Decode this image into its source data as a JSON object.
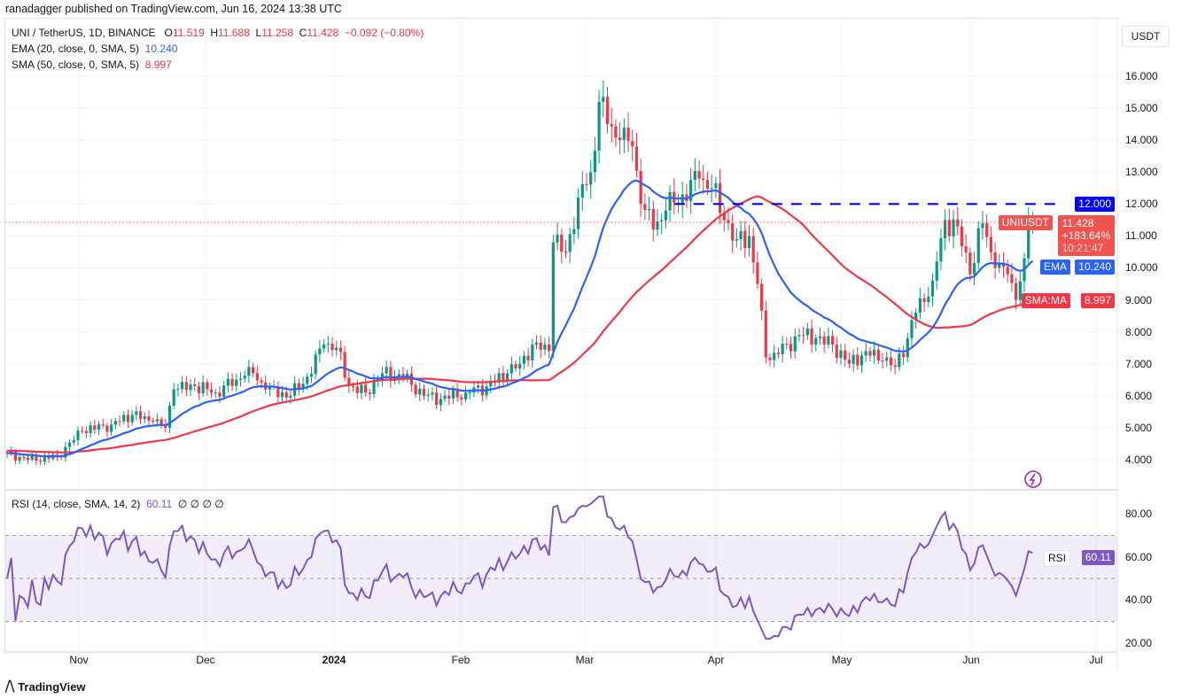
{
  "header": {
    "published": "ranadagger published on TradingView.com, Jun 16, 2024 13:38 UTC"
  },
  "legend": {
    "symbol": "UNI / TetherUS, 1D, BINANCE",
    "o_label": "O",
    "o": "11.519",
    "h_label": "H",
    "h": "11.688",
    "l_label": "L",
    "l": "11.258",
    "c_label": "C",
    "c": "11.428",
    "change": "−0.092 (−0.80%)",
    "ema": "EMA (20, close, 0, SMA, 5)",
    "ema_val": "10.240",
    "sma": "SMA (50, close, 0, SMA, 5)",
    "sma_val": "8.997",
    "rsi": "RSI (14, close, SMA, 14, 2)",
    "rsi_val": "60.11",
    "rsi_extra": "∅ ∅ ∅ ∅"
  },
  "axis": {
    "currency": "USDT",
    "price_ticks": [
      "16.000",
      "15.000",
      "14.000",
      "13.000",
      "12.000",
      "11.000",
      "10.000",
      "9.000",
      "8.000",
      "7.000",
      "6.000",
      "5.000",
      "4.000"
    ],
    "rsi_ticks": [
      "80.00",
      "60.00",
      "40.00",
      "20.00"
    ],
    "time_ticks": [
      "Nov",
      "Dec",
      "2024",
      "Feb",
      "Mar",
      "Apr",
      "May",
      "Jun",
      "Jul"
    ]
  },
  "tags": {
    "resistance": "12.000",
    "symbol": "UNIUSDT",
    "price": "11.428",
    "pct": "+183.64%",
    "countdown": "10:21:47",
    "ema_name": "EMA",
    "ema": "10.240",
    "sma_name": "SMA:MA",
    "sma": "8.997",
    "rsi_name": "RSI",
    "rsi": "60.11"
  },
  "colors": {
    "up": "#089981",
    "down": "#f23645",
    "ema": "#2962ff",
    "sma": "#f23645",
    "rsi": "#7e57c2",
    "resistance": "#0000ff"
  },
  "footer": {
    "brand": "TradingView"
  },
  "chart_data": {
    "type": "candlestick",
    "title": "UNI / TetherUS, 1D, BINANCE",
    "x_start": "2023-10-14",
    "x_end": "2024-06-16",
    "close_keypoints": [
      [
        0,
        4.2
      ],
      [
        5,
        4.0
      ],
      [
        12,
        4.1
      ],
      [
        18,
        4.9
      ],
      [
        25,
        5.1
      ],
      [
        30,
        5.4
      ],
      [
        35,
        5.2
      ],
      [
        38,
        5.0
      ],
      [
        40,
        6.2
      ],
      [
        45,
        6.3
      ],
      [
        50,
        6.1
      ],
      [
        55,
        6.5
      ],
      [
        58,
        6.9
      ],
      [
        62,
        6.2
      ],
      [
        68,
        6.0
      ],
      [
        72,
        6.6
      ],
      [
        76,
        7.6
      ],
      [
        79,
        7.5
      ],
      [
        82,
        6.3
      ],
      [
        86,
        6.1
      ],
      [
        90,
        6.7
      ],
      [
        95,
        6.6
      ],
      [
        100,
        6.0
      ],
      [
        104,
        5.9
      ],
      [
        110,
        6.1
      ],
      [
        115,
        6.3
      ],
      [
        120,
        6.7
      ],
      [
        123,
        7.0
      ],
      [
        126,
        7.6
      ],
      [
        130,
        7.4
      ],
      [
        131,
        10.8
      ],
      [
        134,
        10.5
      ],
      [
        137,
        12.2
      ],
      [
        140,
        13.0
      ],
      [
        142,
        15.2
      ],
      [
        144,
        14.5
      ],
      [
        147,
        14.0
      ],
      [
        150,
        13.8
      ],
      [
        152,
        12.0
      ],
      [
        155,
        11.2
      ],
      [
        158,
        11.8
      ],
      [
        162,
        12.3
      ],
      [
        166,
        12.8
      ],
      [
        169,
        12.5
      ],
      [
        172,
        11.5
      ],
      [
        175,
        10.9
      ],
      [
        178,
        11.0
      ],
      [
        180,
        9.5
      ],
      [
        182,
        7.2
      ],
      [
        185,
        7.3
      ],
      [
        190,
        7.9
      ],
      [
        194,
        7.8
      ],
      [
        198,
        7.6
      ],
      [
        202,
        7.0
      ],
      [
        206,
        7.4
      ],
      [
        210,
        7.1
      ],
      [
        213,
        6.9
      ],
      [
        216,
        7.8
      ],
      [
        218,
        8.6
      ],
      [
        222,
        9.6
      ],
      [
        225,
        11.5
      ],
      [
        228,
        11.3
      ],
      [
        231,
        9.8
      ],
      [
        234,
        11.4
      ],
      [
        237,
        10.0
      ],
      [
        240,
        9.8
      ],
      [
        242,
        9.0
      ],
      [
        244,
        10.3
      ],
      [
        245,
        11.5
      ],
      [
        246,
        11.428
      ]
    ],
    "resistance_level": 12.0,
    "ylim": [
      3.5,
      17
    ],
    "rsi_ylim": [
      20,
      90
    ],
    "indicators": [
      "EMA 20",
      "SMA 50",
      "RSI 14"
    ]
  }
}
